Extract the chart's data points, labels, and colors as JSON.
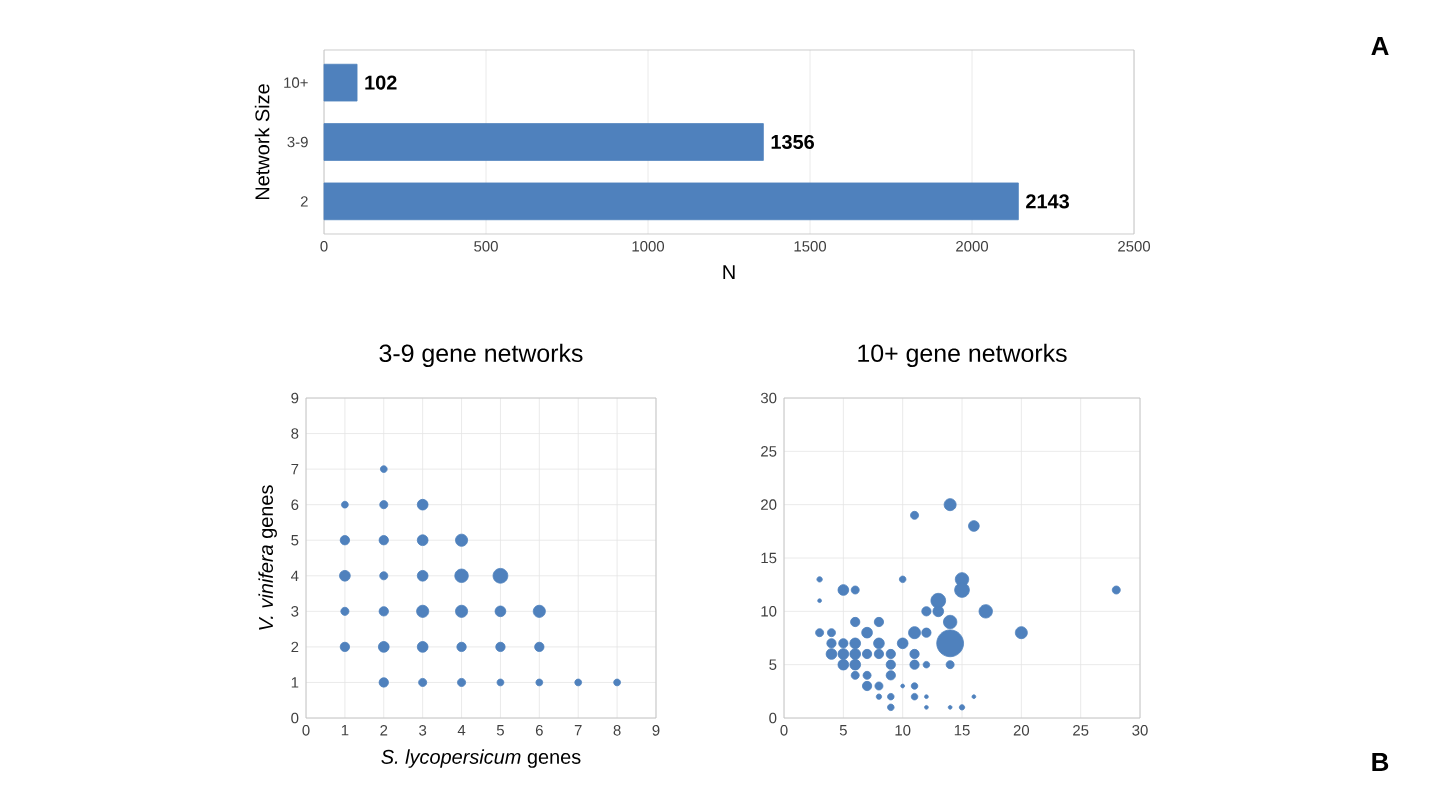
{
  "chart_data": [
    {
      "type": "bar",
      "orientation": "horizontal",
      "categories": [
        "10+",
        "3-9",
        "2"
      ],
      "values": [
        102,
        1356,
        2143
      ],
      "color": "#4f81bd",
      "xlim": [
        0,
        2500
      ],
      "xticks": [
        0,
        500,
        1000,
        1500,
        2000,
        2500
      ],
      "xlabel": "N",
      "ylabel": "Network Size",
      "grid": "x",
      "data_labels": true,
      "annotations": [
        "A"
      ]
    },
    {
      "type": "bubble",
      "title": "3-9 gene networks",
      "xlabel": "*S. lycopersicum* genes",
      "ylabel": "*V. vinifera* genes",
      "color": "#4f81bd",
      "grid": true,
      "xlim": [
        0,
        9
      ],
      "ylim": [
        0,
        9
      ],
      "xticks": [
        0,
        1,
        2,
        3,
        4,
        5,
        6,
        7,
        8,
        9
      ],
      "yticks": [
        0,
        1,
        2,
        3,
        4,
        5,
        6,
        7,
        8,
        9
      ],
      "x": [
        2,
        1,
        2,
        3,
        1,
        2,
        3,
        4,
        1,
        2,
        3,
        4,
        5,
        1,
        2,
        3,
        4,
        5,
        6,
        1,
        2,
        3,
        4,
        5,
        6,
        2,
        3,
        4,
        5,
        6,
        7,
        8
      ],
      "values": [
        7,
        6,
        6,
        6,
        5,
        5,
        5,
        5,
        4,
        4,
        4,
        4,
        4,
        3,
        3,
        3,
        3,
        3,
        3,
        2,
        2,
        2,
        2,
        2,
        2,
        1,
        1,
        1,
        1,
        1,
        1,
        1
      ],
      "sizes": [
        0.21,
        0.21,
        0.3,
        0.53,
        0.4,
        0.4,
        0.53,
        0.67,
        0.53,
        0.3,
        0.53,
        0.83,
        1,
        0.3,
        0.4,
        0.67,
        0.67,
        0.53,
        0.67,
        0.4,
        0.53,
        0.53,
        0.4,
        0.4,
        0.4,
        0.4,
        0.3,
        0.3,
        0.21,
        0.21,
        0.21,
        0.21
      ]
    },
    {
      "type": "bubble",
      "title": "10+ gene networks",
      "color": "#4f81bd",
      "grid": true,
      "xlim": [
        0,
        30
      ],
      "ylim": [
        0,
        30
      ],
      "xticks": [
        0,
        5,
        10,
        15,
        20,
        25,
        30
      ],
      "yticks": [
        0,
        5,
        10,
        15,
        20,
        25,
        30
      ],
      "x": [
        14,
        11,
        16,
        3,
        10,
        15,
        3,
        5,
        6,
        15,
        13,
        28,
        12,
        13,
        17,
        6,
        8,
        14,
        3,
        4,
        7,
        11,
        12,
        20,
        14,
        4,
        5,
        6,
        8,
        10,
        4,
        5,
        6,
        7,
        8,
        9,
        11,
        5,
        6,
        9,
        11,
        12,
        14,
        6,
        7,
        9,
        7,
        8,
        11,
        8,
        9,
        11,
        12,
        16,
        9,
        12,
        14,
        15,
        10
      ],
      "values": [
        20,
        19,
        18,
        13,
        13,
        13,
        11,
        12,
        12,
        12,
        11,
        12,
        10,
        10,
        10,
        9,
        9,
        9,
        8,
        8,
        8,
        8,
        8,
        8,
        7,
        7,
        7,
        7,
        7,
        7,
        6,
        6,
        6,
        6,
        6,
        6,
        6,
        5,
        5,
        5,
        5,
        5,
        5,
        4,
        4,
        4,
        3,
        3,
        3,
        2,
        2,
        2,
        2,
        2,
        1,
        1,
        1,
        1,
        3
      ],
      "sizes": [
        0.2,
        0.09,
        0.16,
        0.04,
        0.06,
        0.25,
        0.02,
        0.16,
        0.09,
        0.3,
        0.3,
        0.09,
        0.12,
        0.16,
        0.25,
        0.12,
        0.12,
        0.25,
        0.09,
        0.09,
        0.16,
        0.2,
        0.12,
        0.2,
        1,
        0.12,
        0.12,
        0.16,
        0.16,
        0.16,
        0.16,
        0.16,
        0.16,
        0.12,
        0.12,
        0.12,
        0.12,
        0.16,
        0.16,
        0.12,
        0.12,
        0.06,
        0.09,
        0.09,
        0.09,
        0.12,
        0.12,
        0.09,
        0.06,
        0.04,
        0.06,
        0.06,
        0.02,
        0.02,
        0.06,
        0.02,
        0.02,
        0.04,
        0.02
      ],
      "annotations": [
        "B"
      ]
    }
  ]
}
